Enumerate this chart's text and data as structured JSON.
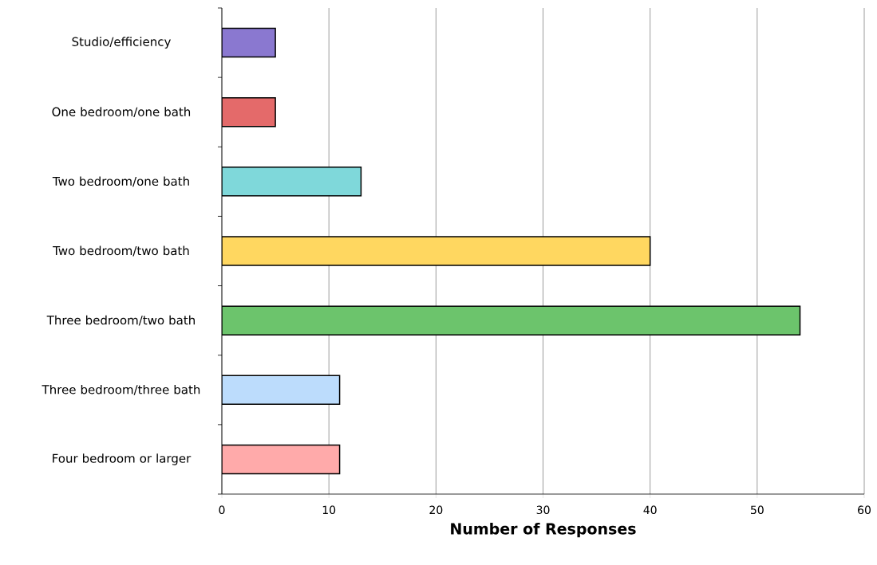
{
  "chart_data": {
    "type": "bar",
    "orientation": "horizontal",
    "xlabel": "Number of Responses",
    "categories": [
      "Studio/efficiency",
      "One bedroom/one bath",
      "Two bedroom/one bath",
      "Two bedroom/two bath",
      "Three bedroom/two bath",
      "Three bedroom/three bath",
      "Four bedroom or larger"
    ],
    "values": [
      5,
      5,
      13,
      40,
      54,
      11,
      11
    ],
    "colors": [
      "#8a78d0",
      "#e46a6a",
      "#7fd8da",
      "#ffd760",
      "#6cc46c",
      "#bcdcfc",
      "#ffaaaa"
    ],
    "xlim": [
      0,
      60
    ],
    "xticks": [
      0,
      10,
      20,
      30,
      40,
      50,
      60
    ],
    "grid": "x"
  }
}
